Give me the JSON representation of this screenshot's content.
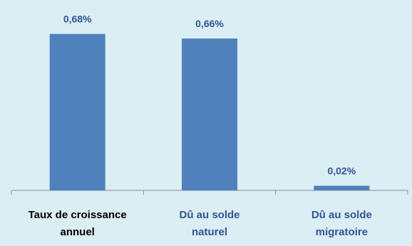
{
  "colors": {
    "background": "#dbeef4",
    "bar": "#4f81bd",
    "axis": "#8c8c8c",
    "data_label": "#2f5597"
  },
  "chart_data": {
    "type": "bar",
    "title": "",
    "xlabel": "",
    "ylabel": "",
    "ylim": [
      0,
      0.75
    ],
    "grid": false,
    "legend": "none",
    "categories": [
      {
        "lines": [
          "Taux de croissance",
          "annuel"
        ],
        "color": "#000000"
      },
      {
        "lines": [
          "Dû au solde",
          "naturel"
        ],
        "color": "#2f5597"
      },
      {
        "lines": [
          "Dû au solde",
          "migratoire"
        ],
        "color": "#2f5597"
      }
    ],
    "values": [
      0.68,
      0.66,
      0.02
    ],
    "data_labels": [
      "0,68%",
      "0,66%",
      "0,02%"
    ]
  }
}
